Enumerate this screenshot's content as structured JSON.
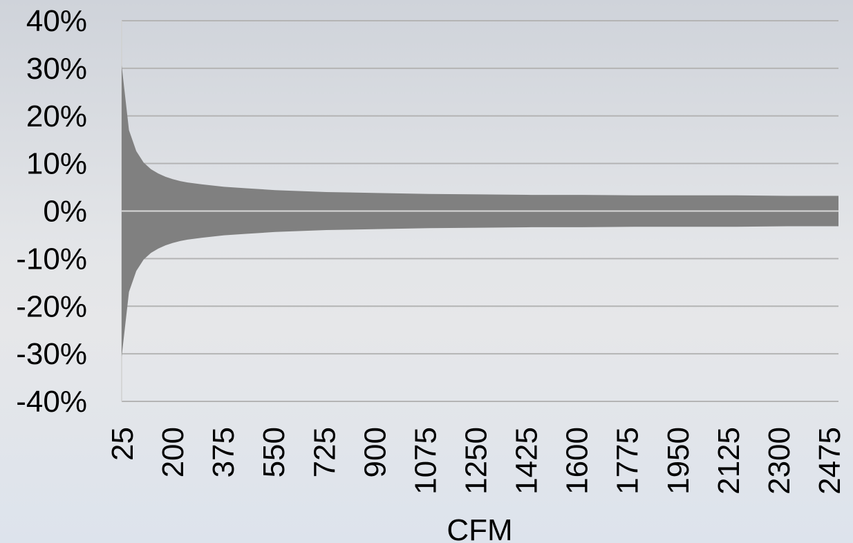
{
  "chart_data": {
    "type": "area",
    "title": "",
    "xlabel": "CFM",
    "ylabel": "",
    "x_tick_labels": [
      "25",
      "200",
      "375",
      "550",
      "725",
      "900",
      "1075",
      "1250",
      "1425",
      "1600",
      "1775",
      "1950",
      "2125",
      "2300",
      "2475"
    ],
    "y_tick_labels": [
      "40%",
      "30%",
      "20%",
      "10%",
      "0%",
      "-10%",
      "-20%",
      "-30%",
      "-40%"
    ],
    "ylim": [
      -40,
      40
    ],
    "xlim": [
      25,
      2475
    ],
    "grid": true,
    "legend": "none",
    "series": [
      {
        "values": [
          [
            25,
            30.6
          ],
          [
            50,
            17.0
          ],
          [
            75,
            12.6
          ],
          [
            100,
            10.2
          ],
          [
            125,
            8.8
          ],
          [
            150,
            7.9
          ],
          [
            175,
            7.2
          ],
          [
            200,
            6.7
          ],
          [
            225,
            6.3
          ],
          [
            250,
            6.0
          ],
          [
            300,
            5.6
          ],
          [
            375,
            5.1
          ],
          [
            450,
            4.8
          ],
          [
            550,
            4.4
          ],
          [
            725,
            4.0
          ],
          [
            900,
            3.8
          ],
          [
            1075,
            3.6
          ],
          [
            1250,
            3.5
          ],
          [
            1425,
            3.4
          ],
          [
            1600,
            3.4
          ],
          [
            1775,
            3.3
          ],
          [
            1950,
            3.3
          ],
          [
            2125,
            3.3
          ],
          [
            2300,
            3.2
          ],
          [
            2475,
            3.2
          ]
        ],
        "symmetric_about_zero": true,
        "color": "#808080"
      }
    ],
    "colors": {
      "fill": "#808080",
      "grid": "#b4b4b4",
      "zero_line": "#d9d9d9"
    }
  }
}
